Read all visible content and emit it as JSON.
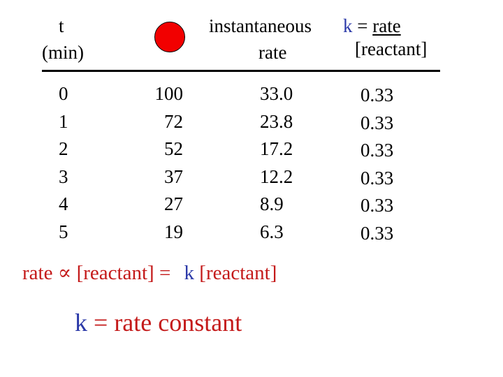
{
  "header": {
    "t_label": "t",
    "t_unit": "(min)",
    "rate_line1": "instantaneous",
    "rate_line2": "rate",
    "k_symbol": "k",
    "k_equals": "=",
    "k_numerator": "rate",
    "k_denominator": "[reactant]"
  },
  "colors": {
    "dot": "#f20000",
    "blue": "#2b39a8",
    "red": "#c41a1a"
  },
  "table": {
    "t": [
      "0",
      "1",
      "2",
      "3",
      "4",
      "5"
    ],
    "reactant": [
      "100",
      "72",
      "52",
      "37",
      "27",
      "19"
    ],
    "rate": [
      "33.0",
      "23.8",
      "17.2",
      "12.2",
      "8.9",
      "6.3"
    ],
    "k": [
      "0.33",
      "0.33",
      "0.33",
      "0.33",
      "0.33",
      "0.33"
    ]
  },
  "equation": {
    "rate": "rate",
    "proportional": "∝",
    "reactant1": "[reactant]",
    "equals": "=",
    "k": "k",
    "reactant2": "[reactant]"
  },
  "definition": {
    "k": "k",
    "equals": "=",
    "text": "rate constant"
  }
}
